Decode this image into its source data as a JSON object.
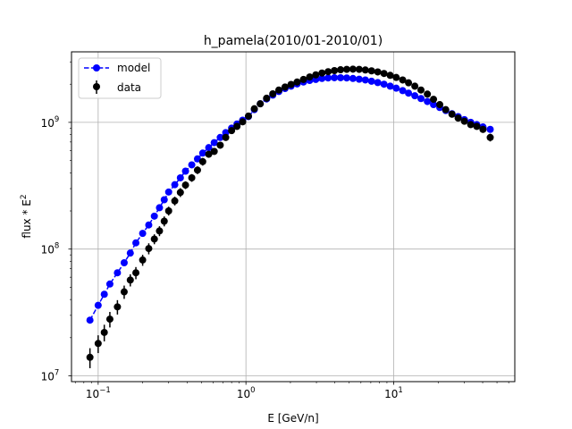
{
  "chart_data": {
    "type": "scatter",
    "title": "h_pamela(2010/01-2010/01)",
    "xlabel": "E [GeV/n]",
    "ylabel_base": "flux * E",
    "ylabel_sup": "2",
    "x_scale": "log",
    "y_scale": "log",
    "xlim": [
      0.066,
      66
    ],
    "ylim": [
      9000000,
      3600000000
    ],
    "grid": true,
    "legend_position": "upper left",
    "x_ticks": [
      {
        "value": 0.1,
        "base": "10",
        "exp": "−1"
      },
      {
        "value": 1,
        "base": "10",
        "exp": "0"
      },
      {
        "value": 10,
        "base": "10",
        "exp": "1"
      }
    ],
    "y_ticks": [
      {
        "value": 10000000,
        "base": "10",
        "exp": "7"
      },
      {
        "value": 100000000,
        "base": "10",
        "exp": "8"
      },
      {
        "value": 1000000000,
        "base": "10",
        "exp": "9"
      }
    ],
    "series": [
      {
        "name": "model",
        "color": "#0000ff",
        "style": "dashed-line-with-circles",
        "points": [
          [
            0.088,
            27500000
          ],
          [
            0.1,
            36000000
          ],
          [
            0.11,
            44000000
          ],
          [
            0.12,
            53000000
          ],
          [
            0.135,
            65000000
          ],
          [
            0.15,
            78000000
          ],
          [
            0.165,
            93000000
          ],
          [
            0.18,
            112000000
          ],
          [
            0.2,
            133000000
          ],
          [
            0.22,
            155000000
          ],
          [
            0.24,
            182000000
          ],
          [
            0.26,
            212000000
          ],
          [
            0.28,
            245000000
          ],
          [
            0.3,
            282000000
          ],
          [
            0.33,
            322000000
          ],
          [
            0.36,
            365000000
          ],
          [
            0.39,
            412000000
          ],
          [
            0.43,
            462000000
          ],
          [
            0.47,
            515000000
          ],
          [
            0.51,
            572000000
          ],
          [
            0.56,
            632000000
          ],
          [
            0.61,
            692000000
          ],
          [
            0.67,
            760000000
          ],
          [
            0.73,
            830000000
          ],
          [
            0.8,
            900000000
          ],
          [
            0.87,
            970000000
          ],
          [
            0.95,
            1040000000
          ],
          [
            1.04,
            1110000000
          ],
          [
            1.14,
            1260000000
          ],
          [
            1.25,
            1400000000
          ],
          [
            1.38,
            1530000000
          ],
          [
            1.52,
            1640000000
          ],
          [
            1.67,
            1750000000
          ],
          [
            1.84,
            1850000000
          ],
          [
            2.02,
            1930000000
          ],
          [
            2.22,
            2010000000
          ],
          [
            2.45,
            2080000000
          ],
          [
            2.7,
            2140000000
          ],
          [
            2.97,
            2180000000
          ],
          [
            3.27,
            2220000000
          ],
          [
            3.6,
            2240000000
          ],
          [
            3.97,
            2250000000
          ],
          [
            4.37,
            2250000000
          ],
          [
            4.81,
            2240000000
          ],
          [
            5.3,
            2220000000
          ],
          [
            5.84,
            2190000000
          ],
          [
            6.43,
            2160000000
          ],
          [
            7.08,
            2110000000
          ],
          [
            7.8,
            2060000000
          ],
          [
            8.6,
            2000000000
          ],
          [
            9.47,
            1930000000
          ],
          [
            10.4,
            1860000000
          ],
          [
            11.5,
            1780000000
          ],
          [
            12.6,
            1700000000
          ],
          [
            13.9,
            1620000000
          ],
          [
            15.3,
            1540000000
          ],
          [
            16.9,
            1460000000
          ],
          [
            18.6,
            1380000000
          ],
          [
            20.5,
            1310000000
          ],
          [
            22.5,
            1240000000
          ],
          [
            24.8,
            1170000000
          ],
          [
            27.3,
            1110000000
          ],
          [
            30.1,
            1050000000
          ],
          [
            33.2,
            1000000000
          ],
          [
            36.5,
            960000000
          ],
          [
            40.2,
            920000000
          ],
          [
            45.0,
            880000000
          ]
        ]
      },
      {
        "name": "data",
        "color": "#000000",
        "style": "markers-with-errorbars",
        "points": [
          [
            0.088,
            14000000,
            0.18
          ],
          [
            0.1,
            18000000,
            0.16
          ],
          [
            0.11,
            22000000,
            0.15
          ],
          [
            0.12,
            28000000,
            0.14
          ],
          [
            0.135,
            35000000,
            0.13
          ],
          [
            0.15,
            46000000,
            0.12
          ],
          [
            0.165,
            57000000,
            0.11
          ],
          [
            0.18,
            65000000,
            0.11
          ],
          [
            0.2,
            82000000,
            0.1
          ],
          [
            0.22,
            101000000,
            0.1
          ],
          [
            0.24,
            120000000,
            0.09
          ],
          [
            0.26,
            139000000,
            0.09
          ],
          [
            0.28,
            166000000,
            0.09
          ],
          [
            0.3,
            200000000,
            0.08
          ],
          [
            0.33,
            240000000,
            0.08
          ],
          [
            0.36,
            280000000,
            0.08
          ],
          [
            0.39,
            320000000,
            0.07
          ],
          [
            0.43,
            365000000,
            0.07
          ],
          [
            0.47,
            420000000,
            0.07
          ],
          [
            0.51,
            490000000,
            0.07
          ],
          [
            0.56,
            560000000,
            0.06
          ],
          [
            0.61,
            590000000,
            0.06
          ],
          [
            0.67,
            660000000,
            0.06
          ],
          [
            0.73,
            760000000,
            0.06
          ],
          [
            0.8,
            860000000,
            0.06
          ],
          [
            0.87,
            930000000,
            0.06
          ],
          [
            0.95,
            1010000000,
            0.06
          ],
          [
            1.04,
            1120000000,
            0.06
          ],
          [
            1.14,
            1280000000,
            0.06
          ],
          [
            1.25,
            1400000000,
            0.06
          ],
          [
            1.38,
            1550000000,
            0.06
          ],
          [
            1.52,
            1680000000,
            0.06
          ],
          [
            1.67,
            1800000000,
            0.06
          ],
          [
            1.84,
            1900000000,
            0.06
          ],
          [
            2.02,
            1990000000,
            0.06
          ],
          [
            2.22,
            2080000000,
            0.06
          ],
          [
            2.45,
            2180000000,
            0.06
          ],
          [
            2.7,
            2280000000,
            0.06
          ],
          [
            2.97,
            2370000000,
            0.06
          ],
          [
            3.27,
            2450000000,
            0.06
          ],
          [
            3.6,
            2510000000,
            0.06
          ],
          [
            3.97,
            2560000000,
            0.06
          ],
          [
            4.37,
            2600000000,
            0.06
          ],
          [
            4.81,
            2620000000,
            0.06
          ],
          [
            5.3,
            2630000000,
            0.06
          ],
          [
            5.84,
            2620000000,
            0.06
          ],
          [
            6.43,
            2590000000,
            0.06
          ],
          [
            7.08,
            2550000000,
            0.06
          ],
          [
            7.8,
            2500000000,
            0.06
          ],
          [
            8.6,
            2430000000,
            0.06
          ],
          [
            9.47,
            2350000000,
            0.06
          ],
          [
            10.4,
            2260000000,
            0.06
          ],
          [
            11.5,
            2160000000,
            0.06
          ],
          [
            12.6,
            2050000000,
            0.06
          ],
          [
            13.9,
            1930000000,
            0.06
          ],
          [
            15.3,
            1800000000,
            0.06
          ],
          [
            16.9,
            1670000000,
            0.06
          ],
          [
            18.6,
            1520000000,
            0.06
          ],
          [
            20.5,
            1380000000,
            0.06
          ],
          [
            22.5,
            1260000000,
            0.06
          ],
          [
            24.8,
            1160000000,
            0.06
          ],
          [
            27.3,
            1080000000,
            0.06
          ],
          [
            30.1,
            1020000000,
            0.06
          ],
          [
            33.2,
            960000000,
            0.06
          ],
          [
            36.5,
            930000000,
            0.06
          ],
          [
            40.2,
            880000000,
            0.06
          ],
          [
            45.0,
            760000000,
            0.07
          ]
        ]
      }
    ]
  }
}
